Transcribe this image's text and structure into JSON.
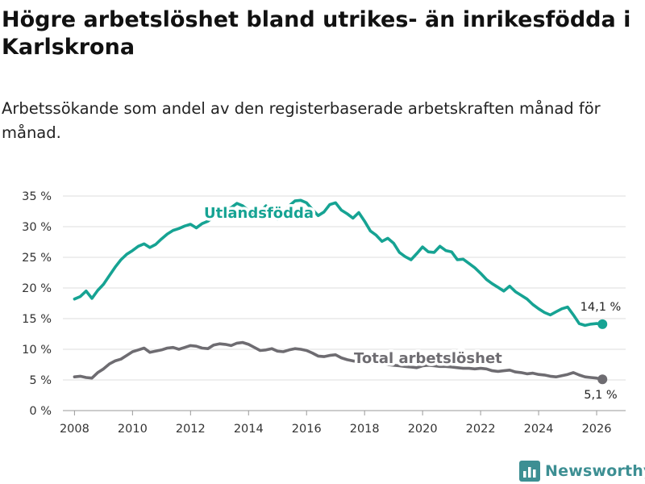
{
  "header": {
    "title": "Högre arbetslöshet bland utrikes- än inrikesfödda i Karlskrona",
    "subtitle": "Arbetssökande som andel av den registerbaserade arbetskraften månad för månad."
  },
  "brand": {
    "name": "Newsworthy",
    "color": "#3d8f93"
  },
  "chart_data": {
    "type": "line",
    "title": "Högre arbetslöshet bland utrikes- än inrikesfödda i Karlskrona",
    "xlabel": "",
    "ylabel": "",
    "xlim": [
      2007.6,
      2027.0
    ],
    "ylim": [
      0,
      35
    ],
    "x_ticks": [
      2008,
      2010,
      2012,
      2014,
      2016,
      2018,
      2020,
      2022,
      2024,
      2026
    ],
    "x_tick_labels": [
      "2008",
      "2010",
      "2012",
      "2014",
      "2016",
      "2018",
      "2020",
      "2022",
      "2024",
      "2026"
    ],
    "y_ticks": [
      0,
      5,
      10,
      15,
      20,
      25,
      30,
      35
    ],
    "y_tick_labels": [
      "0 %",
      "5 %",
      "10 %",
      "15 %",
      "20 %",
      "25 %",
      "30 %",
      "35 %"
    ],
    "grid": true,
    "series": [
      {
        "name": "Utlandsfödda",
        "label": "Utlandsfödda",
        "color": "#16a393",
        "end_label": "14,1 %",
        "x": [
          2008.0,
          2008.2,
          2008.4,
          2008.6,
          2008.8,
          2009.0,
          2009.2,
          2009.4,
          2009.6,
          2009.8,
          2010.0,
          2010.2,
          2010.4,
          2010.6,
          2010.8,
          2011.0,
          2011.2,
          2011.4,
          2011.6,
          2011.8,
          2012.0,
          2012.2,
          2012.4,
          2012.6,
          2012.8,
          2013.0,
          2013.2,
          2013.4,
          2013.6,
          2013.8,
          2014.0,
          2014.2,
          2014.4,
          2014.6,
          2014.8,
          2015.0,
          2015.2,
          2015.4,
          2015.6,
          2015.8,
          2016.0,
          2016.2,
          2016.4,
          2016.6,
          2016.8,
          2017.0,
          2017.2,
          2017.4,
          2017.6,
          2017.8,
          2018.0,
          2018.2,
          2018.4,
          2018.6,
          2018.8,
          2019.0,
          2019.2,
          2019.4,
          2019.6,
          2019.8,
          2020.0,
          2020.2,
          2020.4,
          2020.6,
          2020.8,
          2021.0,
          2021.2,
          2021.4,
          2021.6,
          2021.8,
          2022.0,
          2022.2,
          2022.4,
          2022.6,
          2022.8,
          2023.0,
          2023.2,
          2023.4,
          2023.6,
          2023.8,
          2024.0,
          2024.2,
          2024.4,
          2024.6,
          2024.8,
          2025.0,
          2025.2,
          2025.4,
          2025.6,
          2025.8,
          2026.0,
          2026.2
        ],
        "values": [
          18.2,
          18.6,
          19.5,
          18.3,
          19.6,
          20.6,
          22.0,
          23.4,
          24.6,
          25.5,
          26.1,
          26.8,
          27.2,
          26.6,
          27.1,
          28.0,
          28.8,
          29.4,
          29.7,
          30.1,
          30.4,
          29.8,
          30.5,
          30.9,
          31.6,
          32.2,
          32.7,
          33.1,
          33.8,
          33.4,
          32.6,
          31.8,
          32.4,
          33.4,
          32.1,
          31.2,
          31.8,
          33.4,
          34.2,
          34.3,
          33.9,
          32.8,
          31.8,
          32.4,
          33.6,
          33.9,
          32.7,
          32.1,
          31.4,
          32.3,
          30.9,
          29.3,
          28.6,
          27.6,
          28.1,
          27.3,
          25.8,
          25.1,
          24.6,
          25.6,
          26.7,
          25.9,
          25.8,
          26.8,
          26.1,
          25.9,
          24.6,
          24.7,
          24.0,
          23.3,
          22.4,
          21.4,
          20.7,
          20.1,
          19.5,
          20.3,
          19.4,
          18.8,
          18.2,
          17.3,
          16.6,
          16.0,
          15.6,
          16.1,
          16.6,
          16.9,
          15.6,
          14.2,
          13.9,
          14.1,
          14.2,
          14.1
        ]
      },
      {
        "name": "Total arbetslöshet",
        "label": "Total arbetslöshet",
        "color": "#6e6c71",
        "end_label": "5,1 %",
        "x": [
          2008.0,
          2008.2,
          2008.4,
          2008.6,
          2008.8,
          2009.0,
          2009.2,
          2009.4,
          2009.6,
          2009.8,
          2010.0,
          2010.2,
          2010.4,
          2010.6,
          2010.8,
          2011.0,
          2011.2,
          2011.4,
          2011.6,
          2011.8,
          2012.0,
          2012.2,
          2012.4,
          2012.6,
          2012.8,
          2013.0,
          2013.2,
          2013.4,
          2013.6,
          2013.8,
          2014.0,
          2014.2,
          2014.4,
          2014.6,
          2014.8,
          2015.0,
          2015.2,
          2015.4,
          2015.6,
          2015.8,
          2016.0,
          2016.2,
          2016.4,
          2016.6,
          2016.8,
          2017.0,
          2017.2,
          2017.4,
          2017.6,
          2017.8,
          2018.0,
          2018.2,
          2018.4,
          2018.6,
          2018.8,
          2019.0,
          2019.2,
          2019.4,
          2019.6,
          2019.8,
          2020.0,
          2020.2,
          2020.4,
          2020.6,
          2020.8,
          2021.0,
          2021.2,
          2021.4,
          2021.6,
          2021.8,
          2022.0,
          2022.2,
          2022.4,
          2022.6,
          2022.8,
          2023.0,
          2023.2,
          2023.4,
          2023.6,
          2023.8,
          2024.0,
          2024.2,
          2024.4,
          2024.6,
          2024.8,
          2025.0,
          2025.2,
          2025.4,
          2025.6,
          2025.8,
          2026.0,
          2026.2
        ],
        "values": [
          5.5,
          5.6,
          5.4,
          5.3,
          6.2,
          6.8,
          7.6,
          8.1,
          8.4,
          9.0,
          9.6,
          9.9,
          10.2,
          9.5,
          9.7,
          9.9,
          10.2,
          10.3,
          10.0,
          10.3,
          10.6,
          10.5,
          10.2,
          10.1,
          10.7,
          10.9,
          10.8,
          10.6,
          11.0,
          11.1,
          10.8,
          10.3,
          9.8,
          9.9,
          10.1,
          9.7,
          9.6,
          9.9,
          10.1,
          10.0,
          9.8,
          9.4,
          8.9,
          8.8,
          9.0,
          9.1,
          8.6,
          8.3,
          8.1,
          8.0,
          7.9,
          7.8,
          7.7,
          7.6,
          7.5,
          7.4,
          7.3,
          7.2,
          7.1,
          7.0,
          7.3,
          7.4,
          7.3,
          7.2,
          7.2,
          7.1,
          7.0,
          6.9,
          6.9,
          6.8,
          6.9,
          6.8,
          6.5,
          6.4,
          6.5,
          6.6,
          6.3,
          6.2,
          6.0,
          6.1,
          5.9,
          5.8,
          5.6,
          5.5,
          5.7,
          5.9,
          6.2,
          5.8,
          5.5,
          5.4,
          5.3,
          5.1
        ]
      }
    ]
  }
}
